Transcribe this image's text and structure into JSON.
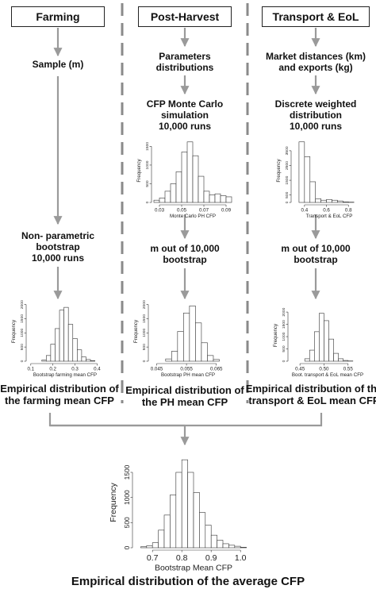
{
  "headers": [
    {
      "id": "farming",
      "label": "Farming"
    },
    {
      "id": "post_harvest",
      "label": "Post-Harvest"
    },
    {
      "id": "transport",
      "label": "Transport & EoL"
    }
  ],
  "steps": {
    "farming_sample": "Sample (m)",
    "farming_bootstrap": [
      "Non- parametric",
      "bootstrap",
      "10,000 runs"
    ],
    "farming_result": [
      "Empirical distribution of",
      "the farming mean CFP"
    ],
    "ph_params": [
      "Parameters",
      "distributions"
    ],
    "ph_mc": [
      "CFP Monte Carlo",
      "simulation",
      "10,000 runs"
    ],
    "ph_bootstrap": [
      "m out of 10,000",
      "bootstrap"
    ],
    "ph_result": [
      "Empirical distribution of",
      "the PH mean CFP"
    ],
    "te_market": [
      "Market distances (km)",
      "and exports (kg)"
    ],
    "te_discrete": [
      "Discrete weighted",
      "distribution",
      "10,000 runs"
    ],
    "te_bootstrap": [
      "m out of 10,000",
      "bootstrap"
    ],
    "te_result": [
      "Empirical distribution of the",
      "transport & EoL mean CFP"
    ]
  },
  "final_title": "Empirical distribution of the average CFP",
  "colors": {
    "arrow": "#9a9a9a",
    "divider": "#8a8a8a",
    "bar_fill": "#ffffff",
    "bar_stroke": "#333333"
  },
  "chart_data": [
    {
      "id": "ph_mc_hist",
      "type": "bar",
      "xlabel": "Monte Carlo PH CFP",
      "ylabel": "Frequency",
      "xlim": [
        0.025,
        0.095
      ],
      "ylim": [
        0,
        1700
      ],
      "xticks": [
        0.03,
        0.05,
        0.07,
        0.09
      ],
      "yticks": [
        0,
        500,
        1000,
        1500
      ],
      "bin_start": 0.025,
      "bin_width": 0.005,
      "values": [
        60,
        120,
        300,
        500,
        820,
        1350,
        1620,
        1250,
        700,
        300,
        200,
        230,
        180,
        150
      ]
    },
    {
      "id": "te_discrete_hist",
      "type": "bar",
      "xlabel": "Transport & EoL CFP",
      "ylabel": "Frequency",
      "xlim": [
        0.3,
        0.95
      ],
      "ylim": [
        0,
        4300
      ],
      "xticks": [
        0.4,
        0.6,
        0.8
      ],
      "yticks": [
        0,
        500,
        1500,
        2500,
        3500
      ],
      "bin_start": 0.35,
      "bin_width": 0.05,
      "values": [
        4100,
        3100,
        1400,
        250,
        150,
        200,
        150,
        100,
        40,
        20
      ]
    },
    {
      "id": "farming_boot_hist",
      "type": "bar",
      "xlabel": "Bootstrap farming mean CFP",
      "ylabel": "Frequency",
      "xlim": [
        0.09,
        0.42
      ],
      "ylim": [
        0,
        2100
      ],
      "xticks": [
        0.1,
        0.2,
        0.3,
        0.4
      ],
      "yticks": [
        0,
        500,
        1000,
        1500,
        2000
      ],
      "bin_start": 0.15,
      "bin_width": 0.02,
      "values": [
        40,
        200,
        600,
        1150,
        1800,
        1900,
        1300,
        800,
        400,
        150,
        60,
        20
      ]
    },
    {
      "id": "ph_boot_hist",
      "type": "bar",
      "xlabel": "Bootstrap PH mean CFP",
      "ylabel": "Frequency",
      "xlim": [
        0.043,
        0.068
      ],
      "ylim": [
        0,
        2100
      ],
      "xticks": [
        0.045,
        0.055,
        0.065
      ],
      "yticks": [
        0,
        500,
        1000,
        1500,
        2000
      ],
      "bin_start": 0.048,
      "bin_width": 0.002,
      "values": [
        80,
        350,
        1050,
        1700,
        1950,
        1350,
        650,
        200,
        60
      ]
    },
    {
      "id": "te_boot_hist",
      "type": "bar",
      "xlabel": "Boot. transport & EoL mean CFP",
      "ylabel": "Frequency",
      "xlim": [
        0.43,
        0.585
      ],
      "ylim": [
        0,
        2100
      ],
      "xticks": [
        0.45,
        0.5,
        0.55
      ],
      "yticks": [
        0,
        500,
        1000,
        1500,
        2000
      ],
      "bin_start": 0.46,
      "bin_width": 0.01,
      "values": [
        100,
        450,
        1200,
        1950,
        1650,
        900,
        320,
        100,
        30,
        10
      ]
    },
    {
      "id": "average_hist",
      "type": "bar",
      "xlabel": "Bootstrap Mean CFP",
      "ylabel": "Frequency",
      "xlim": [
        0.64,
        1.04
      ],
      "ylim": [
        0,
        1800
      ],
      "xticks": [
        0.7,
        0.8,
        0.9,
        1.0
      ],
      "yticks": [
        0,
        500,
        1000,
        1500
      ],
      "bin_start": 0.66,
      "bin_width": 0.02,
      "values": [
        20,
        40,
        100,
        350,
        650,
        1050,
        1500,
        1750,
        1500,
        1100,
        700,
        450,
        250,
        150,
        80,
        50,
        30,
        10
      ]
    }
  ]
}
